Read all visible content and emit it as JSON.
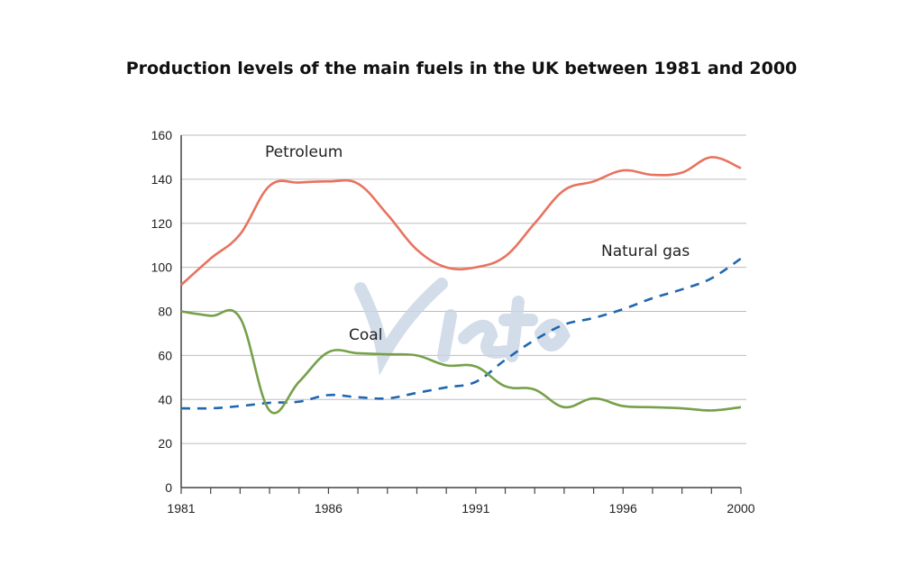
{
  "chart_data": {
    "type": "line",
    "title": "Production levels of the main fuels in the UK between 1981 and 2000",
    "xlabel": "",
    "ylabel": "",
    "x": [
      1981,
      1982,
      1983,
      1984,
      1985,
      1986,
      1987,
      1988,
      1989,
      1990,
      1991,
      1992,
      1993,
      1994,
      1995,
      1996,
      1997,
      1998,
      1999,
      2000
    ],
    "xticks": [
      "1981",
      "1986",
      "1991",
      "1996",
      "2000"
    ],
    "yticks": [
      "0",
      "20",
      "40",
      "60",
      "80",
      "100",
      "120",
      "140",
      "160"
    ],
    "ylim": [
      0,
      160
    ],
    "grid": "horizontal",
    "series": [
      {
        "name": "Petroleum",
        "color": "#E8735F",
        "style": "solid",
        "values": [
          92,
          104,
          115,
          137,
          138.5,
          139,
          138,
          124,
          108,
          100,
          100,
          105,
          120,
          135,
          139,
          144,
          142,
          143,
          150,
          145
        ]
      },
      {
        "name": "Natural gas",
        "color": "#2066B0",
        "style": "dashed",
        "values": [
          36,
          36,
          37,
          38.5,
          39,
          42,
          41,
          40.5,
          43,
          45.5,
          48,
          58,
          67,
          74,
          77,
          81,
          86,
          90,
          95,
          104
        ]
      },
      {
        "name": "Coal",
        "color": "#76A04A",
        "style": "solid",
        "values": [
          80,
          78,
          77,
          35,
          48,
          61.5,
          61,
          60.5,
          60,
          55.5,
          55,
          46,
          44.5,
          36.5,
          40.5,
          37,
          36.5,
          36,
          35,
          36.5
        ]
      }
    ]
  },
  "watermark": "Vietop"
}
